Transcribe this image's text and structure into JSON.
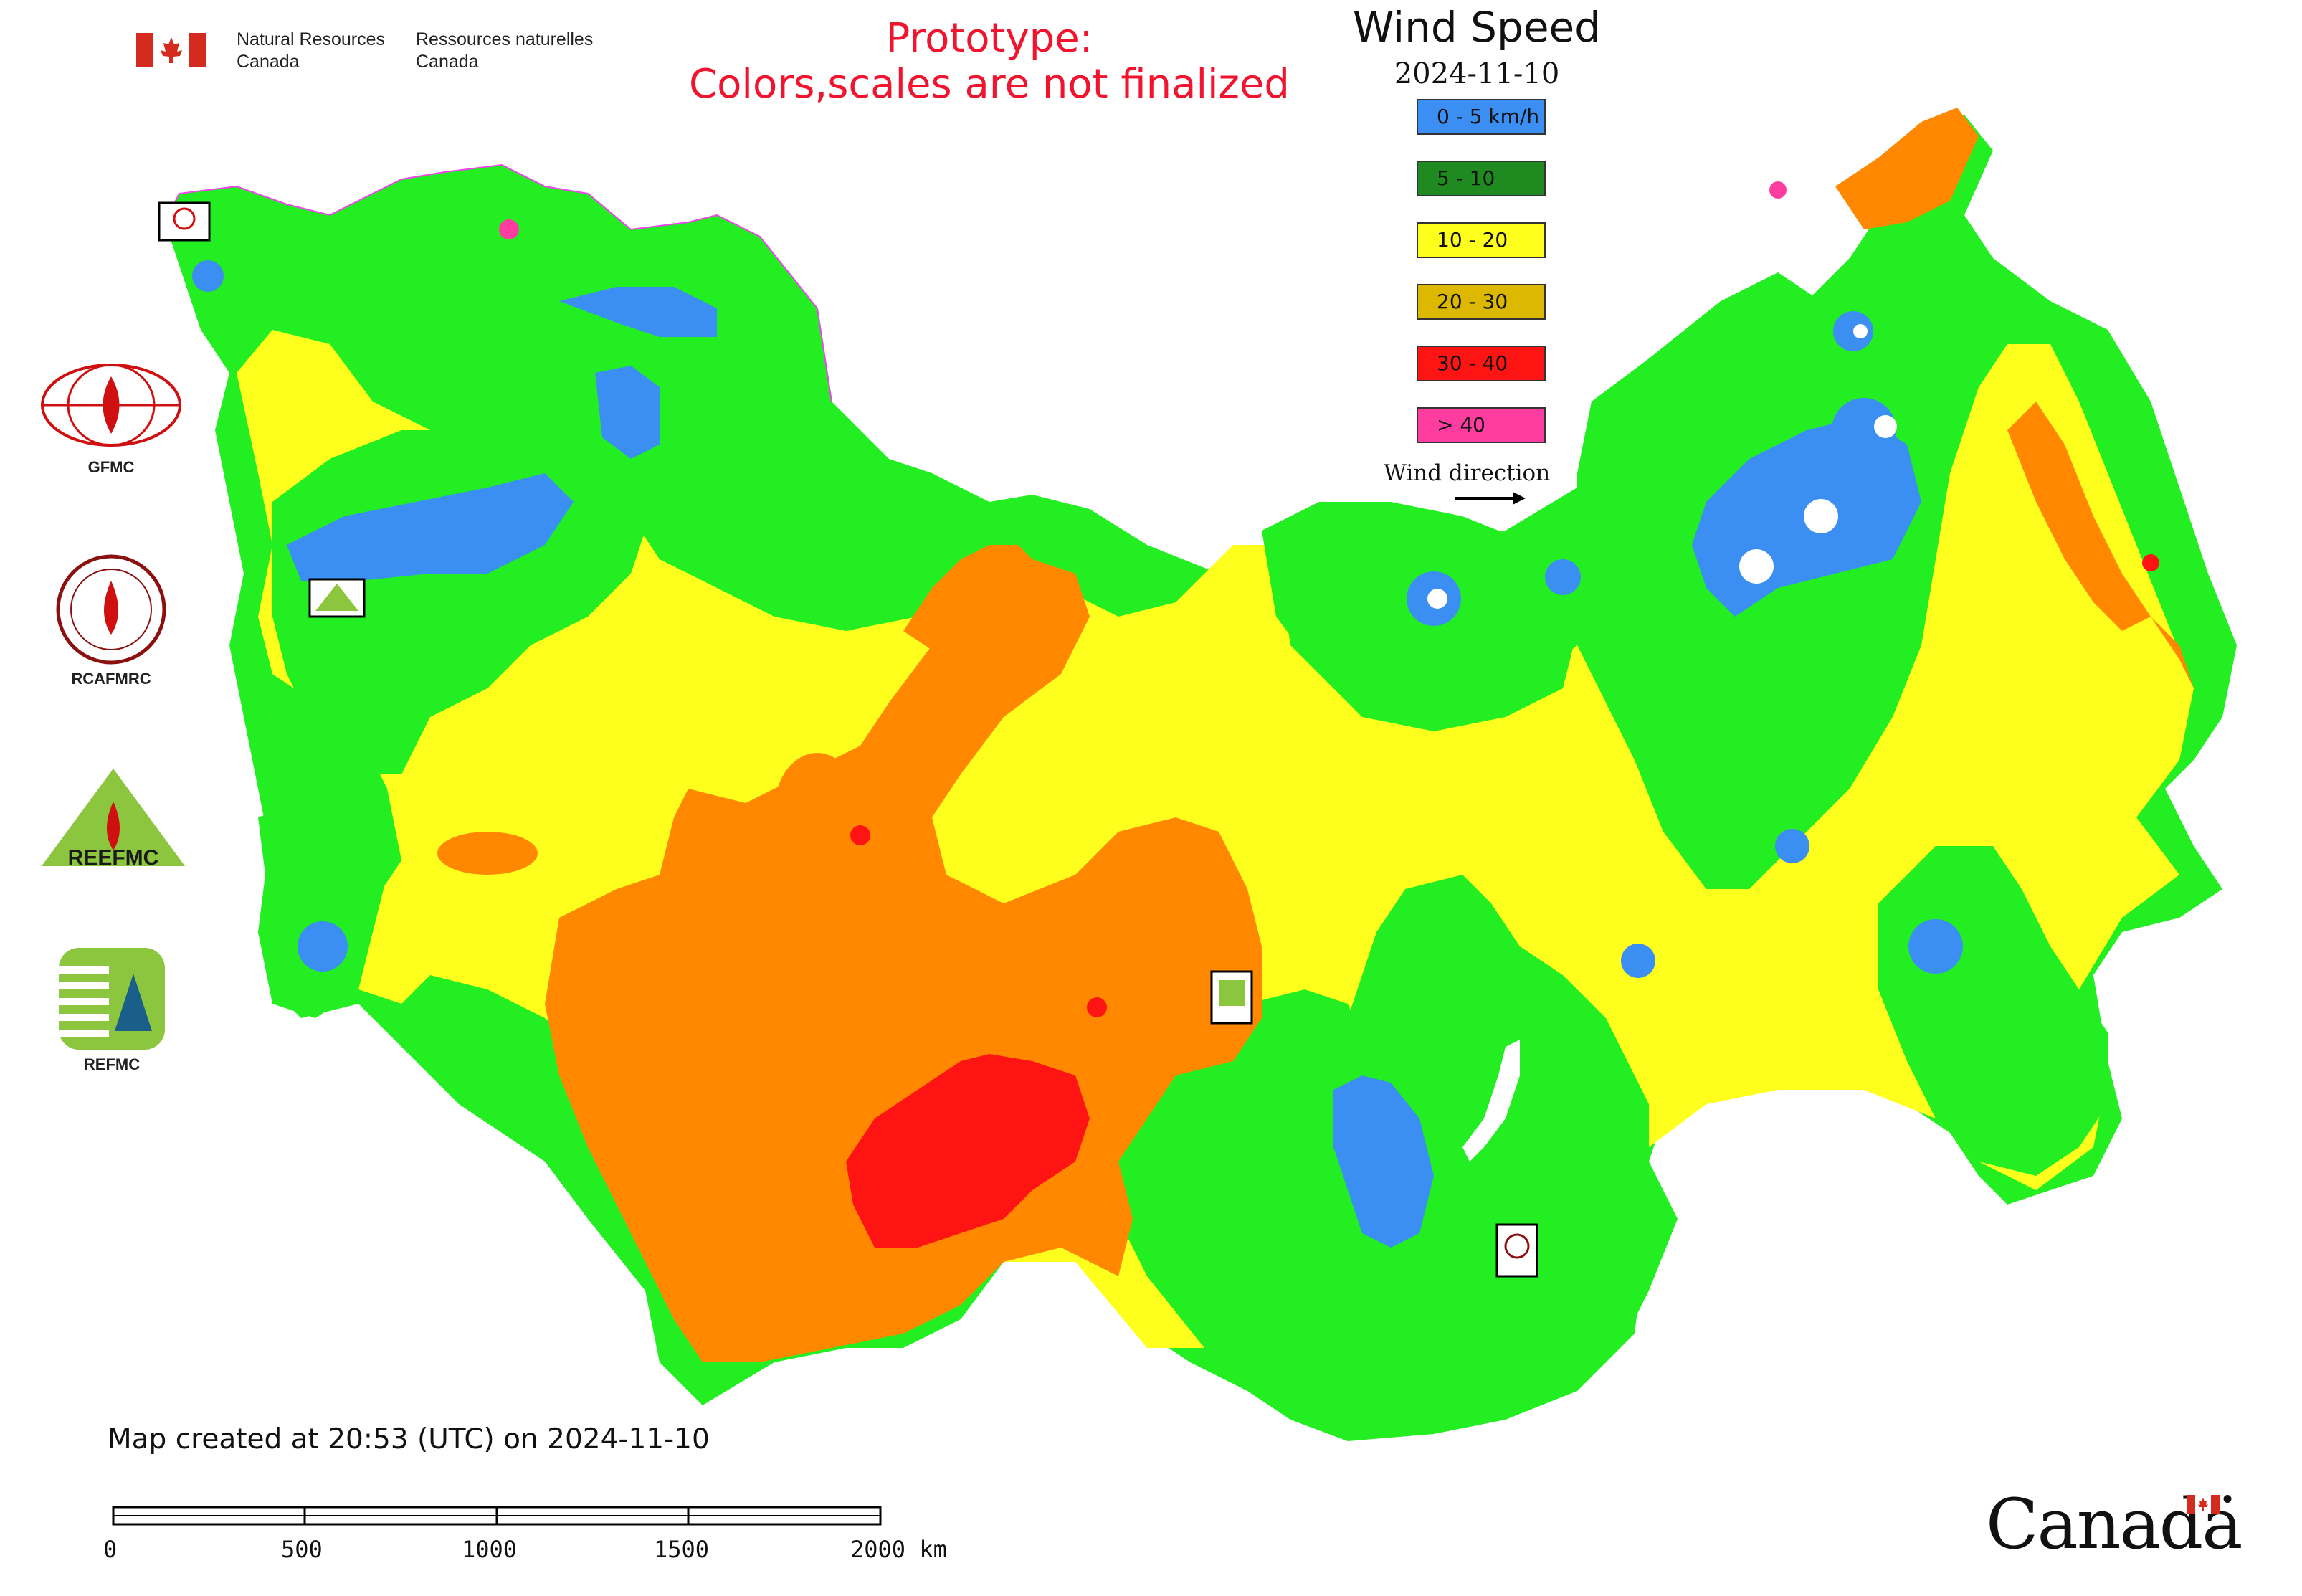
{
  "header": {
    "department_en": "Natural Resources\nCanada",
    "department_fr": "Ressources naturelles\nCanada",
    "prototype_line1": "Prototype:",
    "prototype_line2": "Colors,scales are not finalized"
  },
  "map_title": "Wind Speed",
  "map_date": "2024-11-10",
  "legend": {
    "items": [
      {
        "label": "0 - 5 km/h",
        "color": "#3b8ff2"
      },
      {
        "label": "5 - 10",
        "color": "#1f8a1f"
      },
      {
        "label": "10 - 20",
        "color": "#ffff1e"
      },
      {
        "label": "20 - 30",
        "color": "#dcb800"
      },
      {
        "label": "30 - 40",
        "color": "#ff1414"
      },
      {
        "label": "> 40",
        "color": "#ff3ca0"
      }
    ],
    "wind_direction_label": "Wind direction"
  },
  "map_fill_colors": {
    "calm": "#3b8ff2",
    "light": "#22ee22",
    "moderate": "#ffff1e",
    "strong": "#ff8800",
    "very_strong": "#ff1414",
    "extreme": "#ff3ca0"
  },
  "agencies": [
    {
      "name": "GFMC",
      "icon": "gfmc-logo"
    },
    {
      "name": "RCAFMRC",
      "icon": "rcafmrc-logo"
    },
    {
      "name": "REEFMC",
      "icon": "reefmc-logo"
    },
    {
      "name": "REFMC",
      "icon": "refmc-logo"
    }
  ],
  "footer": {
    "created_text": "Map created at 20:53 (UTC) on 2024-11-10",
    "scale_labels": [
      "0",
      "500",
      "1000",
      "1500",
      "2000 km"
    ],
    "wordmark": "Canadä"
  }
}
